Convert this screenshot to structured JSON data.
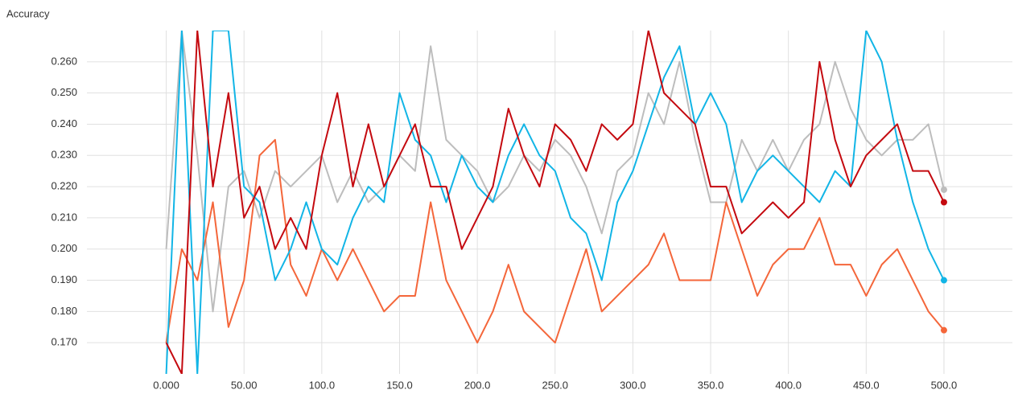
{
  "chart_data": {
    "type": "line",
    "title": "Accuracy",
    "x": [
      0,
      10,
      20,
      30,
      40,
      50,
      60,
      70,
      80,
      90,
      100,
      110,
      120,
      130,
      140,
      150,
      160,
      170,
      180,
      190,
      200,
      210,
      220,
      230,
      240,
      250,
      260,
      270,
      280,
      290,
      300,
      310,
      320,
      330,
      340,
      350,
      360,
      370,
      380,
      390,
      400,
      410,
      420,
      430,
      440,
      450,
      460,
      470,
      480,
      490,
      500
    ],
    "xlim": [
      -51,
      544
    ],
    "xticks": [
      {
        "value": 0,
        "label": "0.000"
      },
      {
        "value": 50,
        "label": "50.00"
      },
      {
        "value": 100,
        "label": "100.0"
      },
      {
        "value": 150,
        "label": "150.0"
      },
      {
        "value": 200,
        "label": "200.0"
      },
      {
        "value": 250,
        "label": "250.0"
      },
      {
        "value": 300,
        "label": "300.0"
      },
      {
        "value": 350,
        "label": "350.0"
      },
      {
        "value": 400,
        "label": "400.0"
      },
      {
        "value": 450,
        "label": "450.0"
      },
      {
        "value": 500,
        "label": "500.0"
      }
    ],
    "ylim": [
      0.16,
      0.27
    ],
    "yticks": [
      {
        "value": 0.17,
        "label": "0.170"
      },
      {
        "value": 0.18,
        "label": "0.180"
      },
      {
        "value": 0.19,
        "label": "0.190"
      },
      {
        "value": 0.2,
        "label": "0.200"
      },
      {
        "value": 0.21,
        "label": "0.210"
      },
      {
        "value": 0.22,
        "label": "0.220"
      },
      {
        "value": 0.23,
        "label": "0.230"
      },
      {
        "value": 0.24,
        "label": "0.240"
      },
      {
        "value": 0.25,
        "label": "0.250"
      },
      {
        "value": 0.26,
        "label": "0.260"
      }
    ],
    "grid": true,
    "series": [
      {
        "color": "#bdbdbd",
        "values": [
          0.2,
          0.27,
          0.23,
          0.18,
          0.22,
          0.225,
          0.21,
          0.225,
          0.22,
          0.225,
          0.23,
          0.215,
          0.225,
          0.215,
          0.22,
          0.23,
          0.225,
          0.265,
          0.235,
          0.23,
          0.225,
          0.215,
          0.22,
          0.23,
          0.225,
          0.235,
          0.23,
          0.22,
          0.205,
          0.225,
          0.23,
          0.25,
          0.24,
          0.26,
          0.235,
          0.215,
          0.215,
          0.235,
          0.225,
          0.235,
          0.225,
          0.235,
          0.24,
          0.26,
          0.245,
          0.235,
          0.23,
          0.235,
          0.235,
          0.24,
          0.219
        ]
      },
      {
        "color": "#f4663a",
        "values": [
          0.17,
          0.2,
          0.19,
          0.215,
          0.175,
          0.19,
          0.23,
          0.235,
          0.195,
          0.185,
          0.2,
          0.19,
          0.2,
          0.19,
          0.18,
          0.185,
          0.185,
          0.215,
          0.19,
          0.18,
          0.17,
          0.18,
          0.195,
          0.18,
          0.175,
          0.17,
          0.185,
          0.2,
          0.18,
          0.185,
          0.19,
          0.195,
          0.205,
          0.19,
          0.19,
          0.19,
          0.215,
          0.2,
          0.185,
          0.195,
          0.2,
          0.2,
          0.21,
          0.195,
          0.195,
          0.185,
          0.195,
          0.2,
          0.19,
          0.18,
          0.174
        ]
      },
      {
        "color": "#12b5e6",
        "values": [
          0.16,
          0.27,
          0.16,
          0.27,
          0.27,
          0.22,
          0.215,
          0.19,
          0.2,
          0.215,
          0.2,
          0.195,
          0.21,
          0.22,
          0.215,
          0.25,
          0.235,
          0.23,
          0.215,
          0.23,
          0.22,
          0.215,
          0.23,
          0.24,
          0.23,
          0.225,
          0.21,
          0.205,
          0.19,
          0.215,
          0.225,
          0.24,
          0.255,
          0.265,
          0.24,
          0.25,
          0.24,
          0.215,
          0.225,
          0.23,
          0.225,
          0.22,
          0.215,
          0.225,
          0.22,
          0.27,
          0.26,
          0.235,
          0.215,
          0.2,
          0.19
        ]
      },
      {
        "color": "#c4090f",
        "values": [
          0.17,
          0.16,
          0.27,
          0.22,
          0.25,
          0.21,
          0.22,
          0.2,
          0.21,
          0.2,
          0.23,
          0.25,
          0.22,
          0.24,
          0.22,
          0.23,
          0.24,
          0.22,
          0.22,
          0.2,
          0.21,
          0.22,
          0.245,
          0.23,
          0.22,
          0.24,
          0.235,
          0.225,
          0.24,
          0.235,
          0.24,
          0.27,
          0.25,
          0.245,
          0.24,
          0.22,
          0.22,
          0.205,
          0.21,
          0.215,
          0.21,
          0.215,
          0.26,
          0.235,
          0.22,
          0.23,
          0.235,
          0.24,
          0.225,
          0.225,
          0.215
        ]
      }
    ]
  }
}
